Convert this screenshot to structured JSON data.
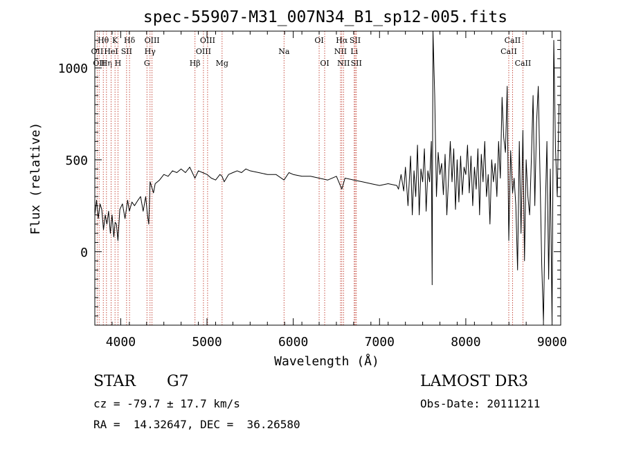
{
  "chart_data": {
    "type": "line",
    "title": "spec-55907-M31_007N34_B1_sp12-005.fits",
    "xlabel": "Wavelength (Å)",
    "ylabel": "Flux (relative)",
    "xlim": [
      3700,
      9100
    ],
    "ylim": [
      -400,
      1200
    ],
    "xticks": [
      4000,
      5000,
      6000,
      7000,
      8000,
      9000
    ],
    "yticks": [
      0,
      500,
      1000
    ],
    "xtick_labels": [
      "4000",
      "5000",
      "6000",
      "7000",
      "8000",
      "9000"
    ],
    "ytick_labels": [
      "0",
      "500",
      "1000"
    ],
    "grid": false,
    "series": [
      {
        "name": "flux",
        "x": [
          3700,
          3720,
          3740,
          3760,
          3780,
          3800,
          3820,
          3840,
          3860,
          3880,
          3900,
          3920,
          3935,
          3950,
          3968,
          3990,
          4020,
          4050,
          4080,
          4100,
          4130,
          4160,
          4200,
          4230,
          4260,
          4290,
          4310,
          4325,
          4340,
          4360,
          4380,
          4400,
          4450,
          4500,
          4550,
          4600,
          4650,
          4700,
          4750,
          4800,
          4860,
          4900,
          4950,
          5000,
          5050,
          5100,
          5150,
          5175,
          5200,
          5250,
          5300,
          5350,
          5400,
          5450,
          5500,
          5600,
          5700,
          5800,
          5893,
          5950,
          6000,
          6100,
          6200,
          6300,
          6400,
          6500,
          6563,
          6600,
          6700,
          6800,
          6900,
          7000,
          7100,
          7200,
          7220,
          7250,
          7280,
          7300,
          7330,
          7360,
          7380,
          7400,
          7420,
          7440,
          7460,
          7480,
          7500,
          7520,
          7540,
          7560,
          7580,
          7600,
          7610,
          7620,
          7640,
          7660,
          7680,
          7700,
          7720,
          7740,
          7760,
          7780,
          7800,
          7820,
          7840,
          7860,
          7880,
          7900,
          7920,
          7940,
          7960,
          7980,
          8000,
          8020,
          8040,
          8060,
          8080,
          8100,
          8120,
          8140,
          8160,
          8180,
          8200,
          8220,
          8240,
          8260,
          8280,
          8300,
          8320,
          8340,
          8360,
          8380,
          8400,
          8420,
          8440,
          8460,
          8480,
          8498,
          8520,
          8542,
          8560,
          8580,
          8600,
          8620,
          8640,
          8662,
          8680,
          8700,
          8720,
          8740,
          8760,
          8780,
          8800,
          8820,
          8840,
          8860,
          8880,
          8900,
          8920,
          8940,
          8960,
          8980,
          9000,
          9020,
          9040,
          9060,
          9080
        ],
        "y": [
          200,
          280,
          180,
          260,
          230,
          120,
          200,
          150,
          220,
          100,
          200,
          80,
          160,
          150,
          60,
          230,
          260,
          180,
          280,
          220,
          270,
          250,
          280,
          300,
          220,
          300,
          200,
          150,
          380,
          350,
          320,
          370,
          390,
          420,
          410,
          440,
          430,
          450,
          430,
          460,
          400,
          440,
          430,
          420,
          400,
          390,
          420,
          410,
          380,
          420,
          430,
          440,
          430,
          450,
          440,
          430,
          420,
          420,
          390,
          430,
          420,
          410,
          410,
          400,
          390,
          410,
          340,
          400,
          390,
          380,
          370,
          360,
          370,
          360,
          340,
          420,
          330,
          460,
          250,
          520,
          200,
          440,
          300,
          580,
          200,
          450,
          380,
          560,
          220,
          440,
          380,
          600,
          -180,
          1200,
          850,
          300,
          540,
          420,
          480,
          310,
          530,
          200,
          400,
          600,
          380,
          560,
          230,
          500,
          270,
          520,
          310,
          460,
          420,
          580,
          320,
          520,
          250,
          460,
          340,
          560,
          200,
          530,
          380,
          600,
          300,
          420,
          150,
          500,
          380,
          480,
          300,
          600,
          400,
          840,
          620,
          540,
          900,
          60,
          550,
          320,
          400,
          250,
          -100,
          600,
          100,
          660,
          -50,
          500,
          300,
          200,
          500,
          850,
          250,
          700,
          900,
          420,
          -70,
          -380,
          200,
          600,
          -150,
          450,
          -380,
          1150,
          560,
          300,
          800
        ],
        "color": "#000000"
      }
    ],
    "line_markers": [
      {
        "wavelength": 3727,
        "label": "OII",
        "row": 2
      },
      {
        "wavelength": 3750,
        "label": "OII",
        "row": 3
      },
      {
        "wavelength": 3798,
        "label": "Hθ",
        "row": 1
      },
      {
        "wavelength": 3835,
        "label": "Hη",
        "row": 3
      },
      {
        "wavelength": 3889,
        "label": "HeI",
        "row": 2
      },
      {
        "wavelength": 3934,
        "label": "K",
        "row": 1
      },
      {
        "wavelength": 3968,
        "label": "H",
        "row": 3
      },
      {
        "wavelength": 4068,
        "label": "SII",
        "row": 2
      },
      {
        "wavelength": 4102,
        "label": "Hδ",
        "row": 1
      },
      {
        "wavelength": 4304,
        "label": "G",
        "row": 3
      },
      {
        "wavelength": 4340,
        "label": "Hγ",
        "row": 2
      },
      {
        "wavelength": 4363,
        "label": "OIII",
        "row": 1
      },
      {
        "wavelength": 4861,
        "label": "Hβ",
        "row": 3
      },
      {
        "wavelength": 4959,
        "label": "OIII",
        "row": 2
      },
      {
        "wavelength": 5007,
        "label": "OIII",
        "row": 1
      },
      {
        "wavelength": 5175,
        "label": "Mg",
        "row": 3
      },
      {
        "wavelength": 5893,
        "label": "Na",
        "row": 2
      },
      {
        "wavelength": 6300,
        "label": "OI",
        "row": 1
      },
      {
        "wavelength": 6364,
        "label": "OI",
        "row": 3
      },
      {
        "wavelength": 6548,
        "label": "NII",
        "row": 2
      },
      {
        "wavelength": 6563,
        "label": "Hα",
        "row": 1
      },
      {
        "wavelength": 6583,
        "label": "NII",
        "row": 3
      },
      {
        "wavelength": 6707,
        "label": "Li",
        "row": 2
      },
      {
        "wavelength": 6717,
        "label": "SII",
        "row": 1
      },
      {
        "wavelength": 6731,
        "label": "SII",
        "row": 3
      },
      {
        "wavelength": 8498,
        "label": "CaII",
        "row": 2
      },
      {
        "wavelength": 8542,
        "label": "CaII",
        "row": 1
      },
      {
        "wavelength": 8662,
        "label": "CaII",
        "row": 3
      }
    ]
  },
  "info": {
    "object_class": "STAR",
    "subclass": "G7",
    "redshift": "cz = -79.7 ± 17.7 km/s",
    "coords": "RA =  14.32647, DEC =  36.26580",
    "survey": "LAMOST DR3",
    "obs_date": "Obs-Date: 20111211"
  }
}
